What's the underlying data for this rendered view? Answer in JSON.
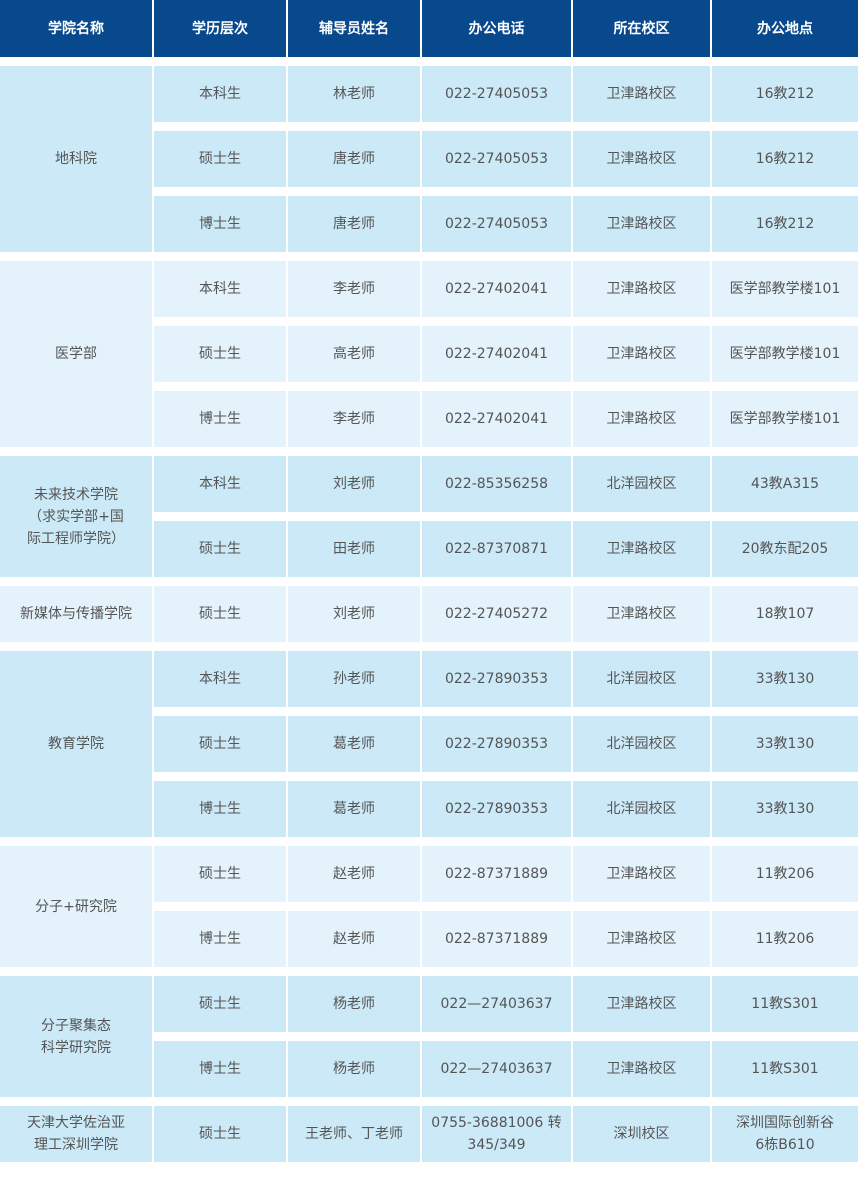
{
  "colors": {
    "header": "#08488c",
    "row_dark": "#cce9f7",
    "row_light": "#e3f2fb",
    "text": "#555555"
  },
  "headers": [
    "学院名称",
    "学历层次",
    "辅导员姓名",
    "办公电话",
    "所在校区",
    "办公地点"
  ],
  "groups": [
    {
      "college": "地科院",
      "shade": "dark",
      "rows": [
        {
          "level": "本科生",
          "counselor": "林老师",
          "phone": "022-27405053",
          "campus": "卫津路校区",
          "office": "16教212"
        },
        {
          "level": "硕士生",
          "counselor": "唐老师",
          "phone": "022-27405053",
          "campus": "卫津路校区",
          "office": "16教212"
        },
        {
          "level": "博士生",
          "counselor": "唐老师",
          "phone": "022-27405053",
          "campus": "卫津路校区",
          "office": "16教212"
        }
      ]
    },
    {
      "college": "医学部",
      "shade": "light",
      "rows": [
        {
          "level": "本科生",
          "counselor": "李老师",
          "phone": "022-27402041",
          "campus": "卫津路校区",
          "office": "医学部教学楼101"
        },
        {
          "level": "硕士生",
          "counselor": "高老师",
          "phone": "022-27402041",
          "campus": "卫津路校区",
          "office": "医学部教学楼101"
        },
        {
          "level": "博士生",
          "counselor": "李老师",
          "phone": "022-27402041",
          "campus": "卫津路校区",
          "office": "医学部教学楼101"
        }
      ]
    },
    {
      "college": "未来技术学院\n（求实学部+国\n际工程师学院）",
      "shade": "dark",
      "rows": [
        {
          "level": "本科生",
          "counselor": "刘老师",
          "phone": "022-85356258",
          "campus": "北洋园校区",
          "office": "43教A315"
        },
        {
          "level": "硕士生",
          "counselor": "田老师",
          "phone": "022-87370871",
          "campus": "卫津路校区",
          "office": "20教东配205"
        }
      ]
    },
    {
      "college": "新媒体与传播学院",
      "shade": "light",
      "rows": [
        {
          "level": "硕士生",
          "counselor": "刘老师",
          "phone": "022-27405272",
          "campus": "卫津路校区",
          "office": "18教107"
        }
      ]
    },
    {
      "college": "教育学院",
      "shade": "dark",
      "rows": [
        {
          "level": "本科生",
          "counselor": "孙老师",
          "phone": "022-27890353",
          "campus": "北洋园校区",
          "office": "33教130"
        },
        {
          "level": "硕士生",
          "counselor": "葛老师",
          "phone": "022-27890353",
          "campus": "北洋园校区",
          "office": "33教130"
        },
        {
          "level": "博士生",
          "counselor": "葛老师",
          "phone": "022-27890353",
          "campus": "北洋园校区",
          "office": "33教130"
        }
      ]
    },
    {
      "college": "分子+研究院",
      "shade": "light",
      "rows": [
        {
          "level": "硕士生",
          "counselor": "赵老师",
          "phone": "022-87371889",
          "campus": "卫津路校区",
          "office": "11教206"
        },
        {
          "level": "博士生",
          "counselor": "赵老师",
          "phone": "022-87371889",
          "campus": "卫津路校区",
          "office": "11教206"
        }
      ]
    },
    {
      "college": "分子聚集态\n科学研究院",
      "shade": "dark",
      "rows": [
        {
          "level": "硕士生",
          "counselor": "杨老师",
          "phone": "022—27403637",
          "campus": "卫津路校区",
          "office": "11教S301"
        },
        {
          "level": "博士生",
          "counselor": "杨老师",
          "phone": "022—27403637",
          "campus": "卫津路校区",
          "office": "11教S301"
        }
      ]
    },
    {
      "college": "天津大学佐治亚\n理工深圳学院",
      "shade": "dark",
      "rows": [
        {
          "level": "硕士生",
          "counselor": "王老师、丁老师",
          "phone": "0755-36881006 转\n345/349",
          "campus": "深圳校区",
          "office": "深圳国际创新谷\n6栋B610"
        }
      ]
    }
  ]
}
